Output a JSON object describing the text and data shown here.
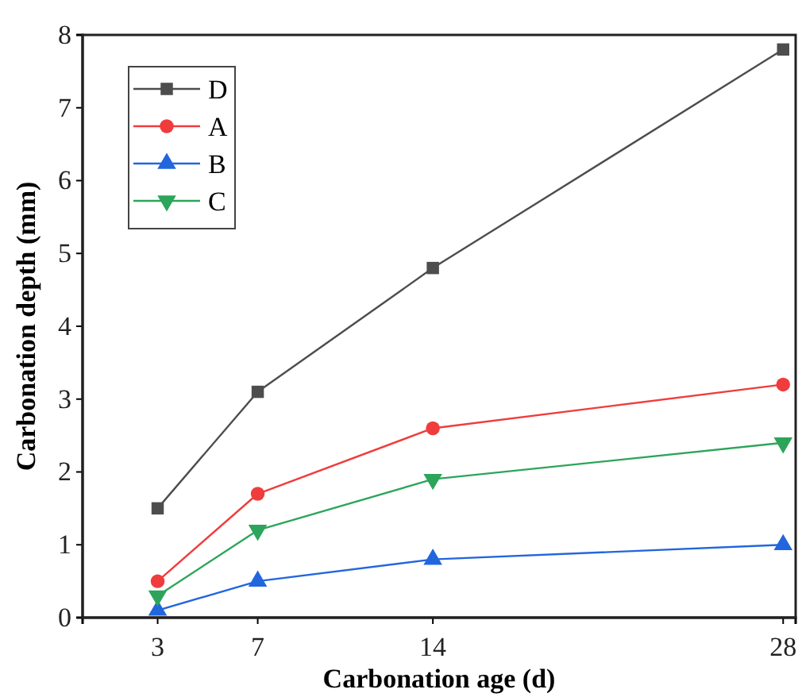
{
  "chart_data": {
    "type": "line",
    "xlabel": "Carbonation age (d)",
    "ylabel": "Carbonation depth (mm)",
    "x": [
      3,
      7,
      14,
      28
    ],
    "xlim": [
      0,
      28.5
    ],
    "xticks": [
      3,
      7,
      14,
      28
    ],
    "ylim": [
      0,
      8
    ],
    "yticks": [
      0,
      1,
      2,
      3,
      4,
      5,
      6,
      7,
      8
    ],
    "legend": "top left",
    "grid": false,
    "series": [
      {
        "name": "D",
        "color": "#4d4d4d",
        "marker": "square",
        "values": [
          1.5,
          3.1,
          4.8,
          7.8
        ]
      },
      {
        "name": "A",
        "color": "#f03c3c",
        "marker": "circle",
        "values": [
          0.5,
          1.7,
          2.6,
          3.2
        ]
      },
      {
        "name": "B",
        "color": "#2266dd",
        "marker": "triangle",
        "values": [
          0.1,
          0.5,
          0.8,
          1.0
        ]
      },
      {
        "name": "C",
        "color": "#2ca55a",
        "marker": "triangle-down",
        "values": [
          0.3,
          1.2,
          1.9,
          2.4
        ]
      }
    ]
  }
}
